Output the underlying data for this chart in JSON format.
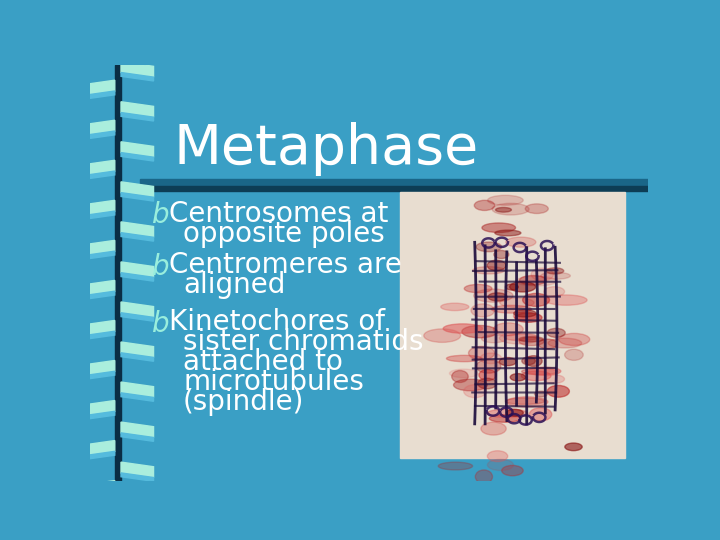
{
  "bg_color": "#3A9FC5",
  "title": "Metaphase",
  "title_color": "#FFFFFF",
  "title_fontsize": 40,
  "separator_color_top": "#1A6688",
  "separator_color_bottom": "#0D3D55",
  "bullet_color": "#99EEDD",
  "text_color": "#FFFFFF",
  "bullet_char": "b",
  "bullet_fontsize": 20,
  "text_fontsize": 20,
  "bullet_points": [
    [
      "Centrosomes at",
      "opposite poles"
    ],
    [
      "Centromeres are",
      "aligned"
    ],
    [
      "Kinetochores of",
      "sister chromatids",
      "attached to",
      "microtubules",
      "(spindle)"
    ]
  ],
  "ribbon_color_light": "#AAEEDD",
  "ribbon_color_mid": "#55BBDD",
  "ribbon_color_dark": "#0A2D44",
  "image_bg": "#E8DDD0"
}
